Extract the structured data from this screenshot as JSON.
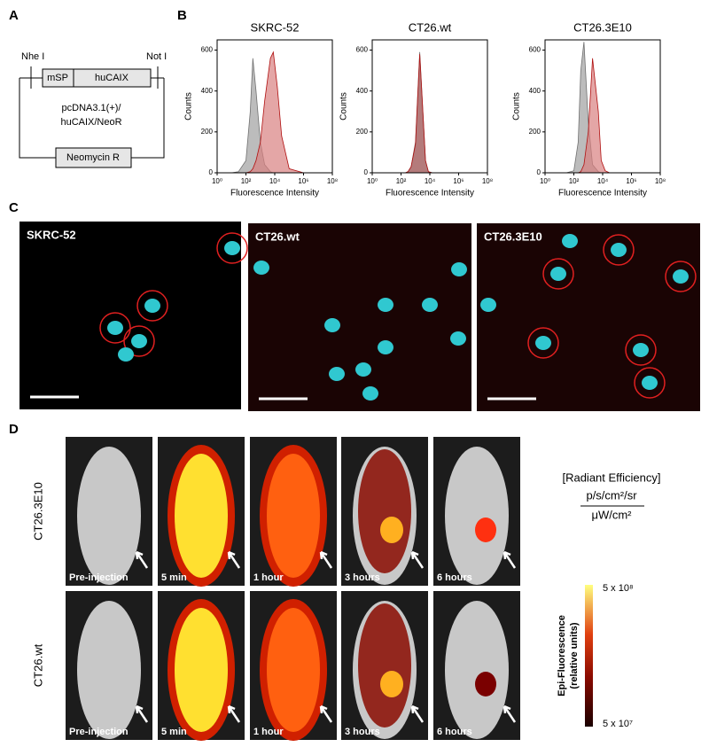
{
  "panels": {
    "a": "A",
    "b": "B",
    "c": "C",
    "d": "D"
  },
  "plasmid": {
    "site_left": "Nhe I",
    "site_right": "Not I",
    "signal": "mSP",
    "insert": "huCAIX",
    "name_lines": [
      "pcDNA3.1(+)/",
      "huCAIX/NeoR"
    ],
    "marker": "Neomycin R"
  },
  "chart_data": [
    {
      "type": "area",
      "title": "SKRC-52",
      "x_label": "Fluorescence Intensity",
      "y_label": "Counts",
      "log_x": true,
      "xlim": [
        1,
        100000000
      ],
      "xticks": [
        {
          "value": 1,
          "label": "10⁰"
        },
        {
          "value": 100,
          "label": "10²"
        },
        {
          "value": 10000,
          "label": "10⁴"
        },
        {
          "value": 1000000,
          "label": "10⁶"
        },
        {
          "value": 100000000,
          "label": "10⁸"
        }
      ],
      "ylim": [
        0,
        650
      ],
      "yticks": [
        0,
        200,
        400,
        600
      ],
      "x": [
        10,
        30,
        100,
        200,
        300,
        500,
        1000,
        2000,
        5000,
        8000,
        15000,
        30000,
        100000,
        1000000
      ],
      "series": [
        {
          "color": "#a0a0a0",
          "values": [
            0,
            5,
            60,
            300,
            560,
            400,
            150,
            40,
            5,
            0,
            0,
            0,
            0,
            0
          ]
        },
        {
          "color": "#d98080",
          "values": [
            0,
            0,
            0,
            5,
            20,
            60,
            150,
            350,
            560,
            590,
            420,
            180,
            20,
            0
          ]
        }
      ]
    },
    {
      "type": "area",
      "title": "CT26.wt",
      "x_label": "Fluorescence Intensity",
      "y_label": "Counts",
      "log_x": true,
      "xlim": [
        1,
        100000000
      ],
      "xticks": [
        {
          "value": 1,
          "label": "10⁰"
        },
        {
          "value": 100,
          "label": "10²"
        },
        {
          "value": 10000,
          "label": "10⁴"
        },
        {
          "value": 1000000,
          "label": "10⁶"
        },
        {
          "value": 100000000,
          "label": "10⁸"
        }
      ],
      "ylim": [
        0,
        650
      ],
      "yticks": [
        0,
        200,
        400,
        600
      ],
      "x": [
        10,
        30,
        100,
        200,
        300,
        500,
        1000,
        2000,
        5000,
        8000,
        15000,
        30000,
        100000,
        1000000
      ],
      "series": [
        {
          "color": "#a0a0a0",
          "values": [
            0,
            0,
            0,
            0,
            5,
            30,
            150,
            590,
            60,
            5,
            0,
            0,
            0,
            0
          ]
        },
        {
          "color": "#b06060",
          "values": [
            0,
            0,
            0,
            0,
            5,
            30,
            140,
            580,
            60,
            5,
            0,
            0,
            0,
            0
          ]
        }
      ]
    },
    {
      "type": "area",
      "title": "CT26.3E10",
      "x_label": "Fluorescence Intensity",
      "y_label": "Counts",
      "log_x": true,
      "xlim": [
        1,
        100000000
      ],
      "xticks": [
        {
          "value": 1,
          "label": "10⁰"
        },
        {
          "value": 100,
          "label": "10²"
        },
        {
          "value": 10000,
          "label": "10⁴"
        },
        {
          "value": 1000000,
          "label": "10⁶"
        },
        {
          "value": 100000000,
          "label": "10⁸"
        }
      ],
      "ylim": [
        0,
        650
      ],
      "yticks": [
        0,
        200,
        400,
        600
      ],
      "x": [
        10,
        30,
        100,
        200,
        300,
        500,
        1000,
        2000,
        5000,
        8000,
        15000,
        30000,
        100000,
        1000000
      ],
      "series": [
        {
          "color": "#a0a0a0",
          "values": [
            0,
            0,
            10,
            150,
            500,
            640,
            250,
            40,
            5,
            0,
            0,
            0,
            0,
            0
          ]
        },
        {
          "color": "#d98080",
          "values": [
            0,
            0,
            0,
            0,
            5,
            40,
            200,
            560,
            300,
            60,
            10,
            0,
            0,
            0
          ]
        }
      ]
    }
  ],
  "microscopy": {
    "labels": [
      "SKRC-52",
      "CT26.wt",
      "CT26.3E10"
    ]
  },
  "imaging": {
    "rows": [
      "CT26.3E10",
      "CT26.wt"
    ],
    "times": [
      "Pre-injection",
      "5 min",
      "1 hour",
      "3 hours",
      "6 hours"
    ],
    "colorbar": {
      "title": "[Radiant Efficiency]",
      "numerator": "p/s/cm²/sr",
      "denominator": "μW/cm²",
      "max_label": "5 x 10⁸",
      "min_label": "5 x 10⁷",
      "axis_lines": [
        "Epi-Fluorescence",
        "(relative units)"
      ]
    }
  }
}
